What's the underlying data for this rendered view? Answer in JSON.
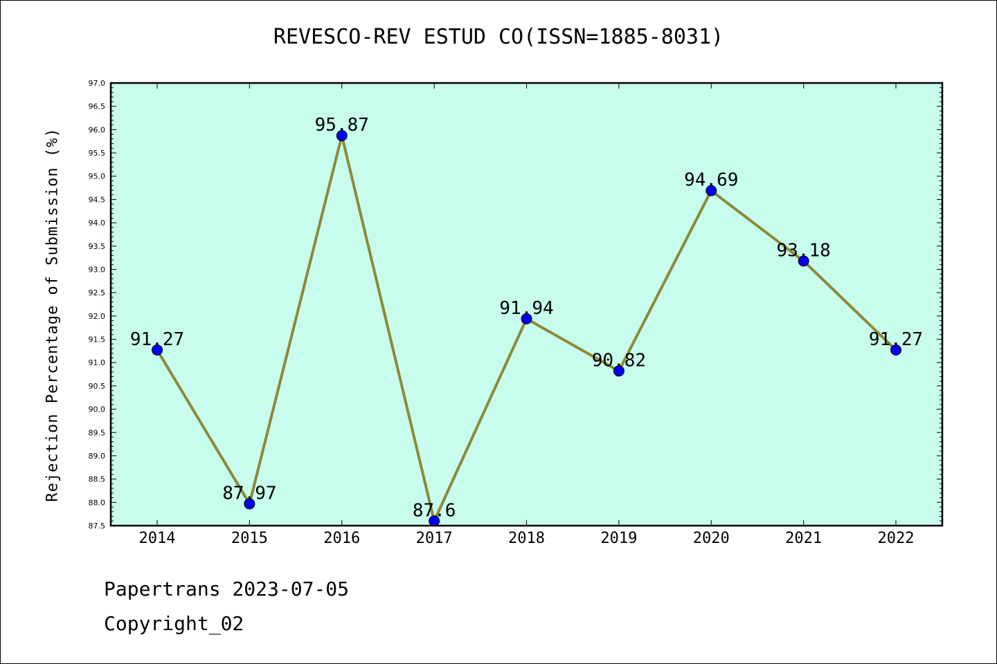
{
  "chart_data": {
    "type": "line",
    "title": "REVESCO-REV ESTUD CO(ISSN=1885-8031)",
    "xlabel": "",
    "ylabel": "Rejection Percentage of Submission (%)",
    "categories": [
      "2014",
      "2015",
      "2016",
      "2017",
      "2018",
      "2019",
      "2020",
      "2021",
      "2022"
    ],
    "values": [
      91.27,
      87.97,
      95.87,
      87.6,
      91.94,
      90.82,
      94.69,
      93.18,
      91.27
    ],
    "data_labels": [
      "91.27",
      "87.97",
      "95.87",
      "87.6",
      "91.94",
      "90.82",
      "94.69",
      "93.18",
      "91.27"
    ],
    "ylim": [
      87.5,
      97.0
    ],
    "yticks": [
      "87.5",
      "88.0",
      "88.5",
      "89.0",
      "89.5",
      "90.0",
      "90.5",
      "91.0",
      "91.5",
      "92.0",
      "92.5",
      "93.0",
      "93.5",
      "94.0",
      "94.5",
      "95.0",
      "95.5",
      "96.0",
      "96.5",
      "97.0"
    ],
    "grid": false,
    "colors": {
      "plot_background": "#c8fcec",
      "line": "#8b8a3a",
      "marker": "#0000ee"
    }
  },
  "footer": {
    "line1": "Papertrans 2023-07-05",
    "line2": "Copyright_02"
  }
}
